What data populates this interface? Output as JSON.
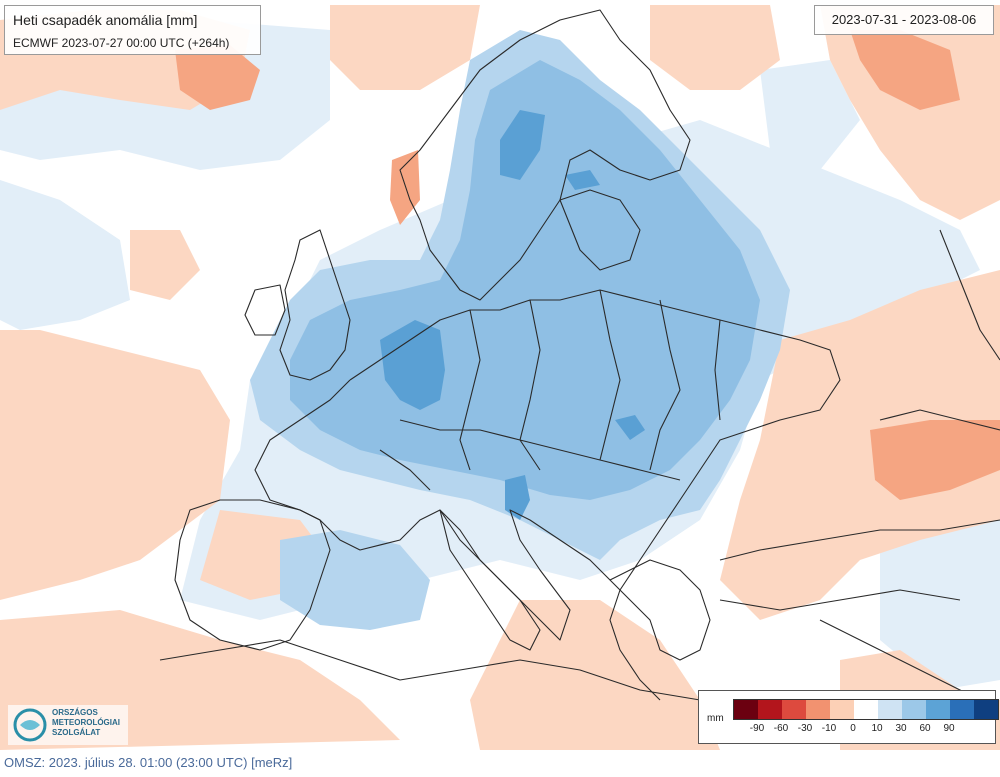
{
  "header": {
    "title": "Heti csapadék anomália [mm]",
    "model_run": "ECMWF 2023-07-27 00:00 UTC (+264h)",
    "period": "2023-07-31 - 2023-08-06"
  },
  "legend": {
    "unit": "mm",
    "ticks": [
      "-90",
      "-60",
      "-30",
      "-10",
      "0",
      "10",
      "30",
      "60",
      "90"
    ],
    "colors": [
      "#6b0010",
      "#b3151c",
      "#dd4a3e",
      "#f29270",
      "#fcd0b6",
      "#ffffff",
      "#cfe3f3",
      "#9cc8e8",
      "#5ca3d6",
      "#2a6fb8",
      "#0f3f80"
    ]
  },
  "logo": {
    "org_line1": "ORSZÁGOS",
    "org_line2": "METEOROLÓGIAI",
    "org_line3": "SZOLGÁLAT"
  },
  "footer": {
    "text": "OMSZ: 2023. július 28. 01:00 (23:00 UTC)  [meRz]"
  }
}
